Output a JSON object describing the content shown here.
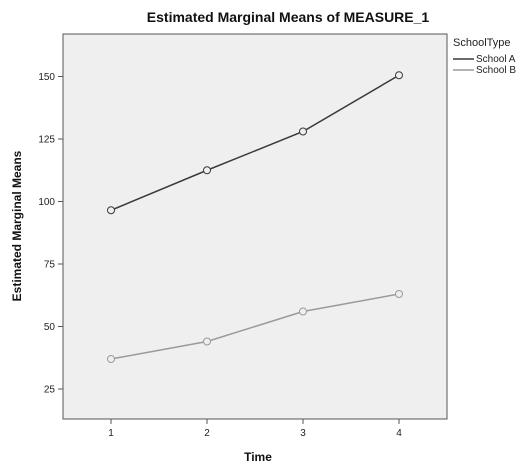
{
  "chart_data": {
    "type": "line",
    "title": "Estimated Marginal Means of MEASURE_1",
    "xlabel": "Time",
    "ylabel": "Estimated Marginal Means",
    "x": [
      1,
      2,
      3,
      4
    ],
    "xticks": [
      "1",
      "2",
      "3",
      "4"
    ],
    "yticks": [
      25,
      50,
      75,
      100,
      125,
      150
    ],
    "ylim": [
      13,
      167
    ],
    "legend_title": "SchoolType",
    "legend_position": "top-right, outside plot",
    "grid": false,
    "series": [
      {
        "name": "School A",
        "values": [
          96.5,
          112.5,
          128,
          150.5
        ],
        "color": "#3a3a3a"
      },
      {
        "name": "School B",
        "values": [
          37,
          44,
          56,
          63
        ],
        "color": "#9a9a9a"
      }
    ],
    "colors": {
      "plot_background": "#efefef",
      "frame": "#555555"
    }
  }
}
